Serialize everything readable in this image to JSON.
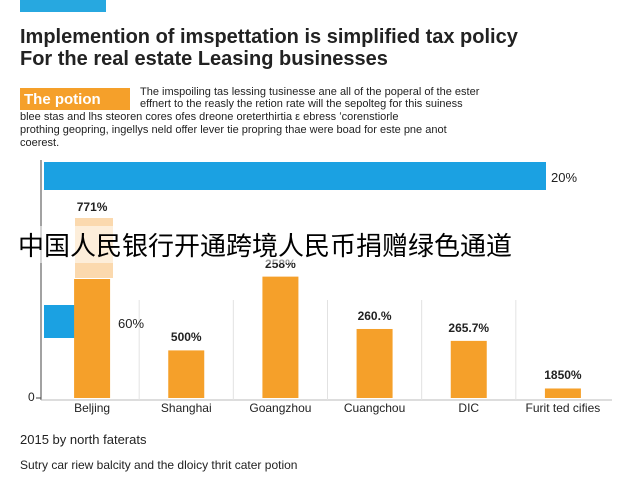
{
  "chart_data": {
    "type": "bar",
    "title": "Implemention of imspettation is simplified tax policy",
    "subtitle": "For the real estate Leasing businesses",
    "label_box": "The potion",
    "paragraph": [
      "The imspoiling tas lessing tusinesse ane all of the poperal of the ester",
      "effnert to the reasly the retion rate will the sepolteg for this suiness",
      "blee stas and lhs steoren cores ofes dreone oreterthirtia ε ebress ʻcorenstiorle",
      "prothing geopring, ingellys neld offer lever tie propring thae were boad for este pne anot",
      "coerest."
    ],
    "overlay": "中国人民银行开通跨境人民币捐赠绿色通道",
    "side_labels": [
      "20%",
      "60%"
    ],
    "categories": [
      "Beljing",
      "Shanghai",
      "Goangzhou",
      "Cuangchou",
      "DIC",
      "Furit ted cifies"
    ],
    "values": [
      50,
      20,
      51,
      29,
      24,
      4
    ],
    "bar_labels": [
      "771%",
      "500%",
      "258%",
      "260.%",
      "265.7%",
      "1850%"
    ],
    "color": "#f5a02a",
    "ylim": [
      0,
      100
    ],
    "yticks": [
      0
    ],
    "footer": [
      "2015 by north faterats",
      "Sutry car riew balcity and the dloicy thrit cater potion"
    ]
  }
}
